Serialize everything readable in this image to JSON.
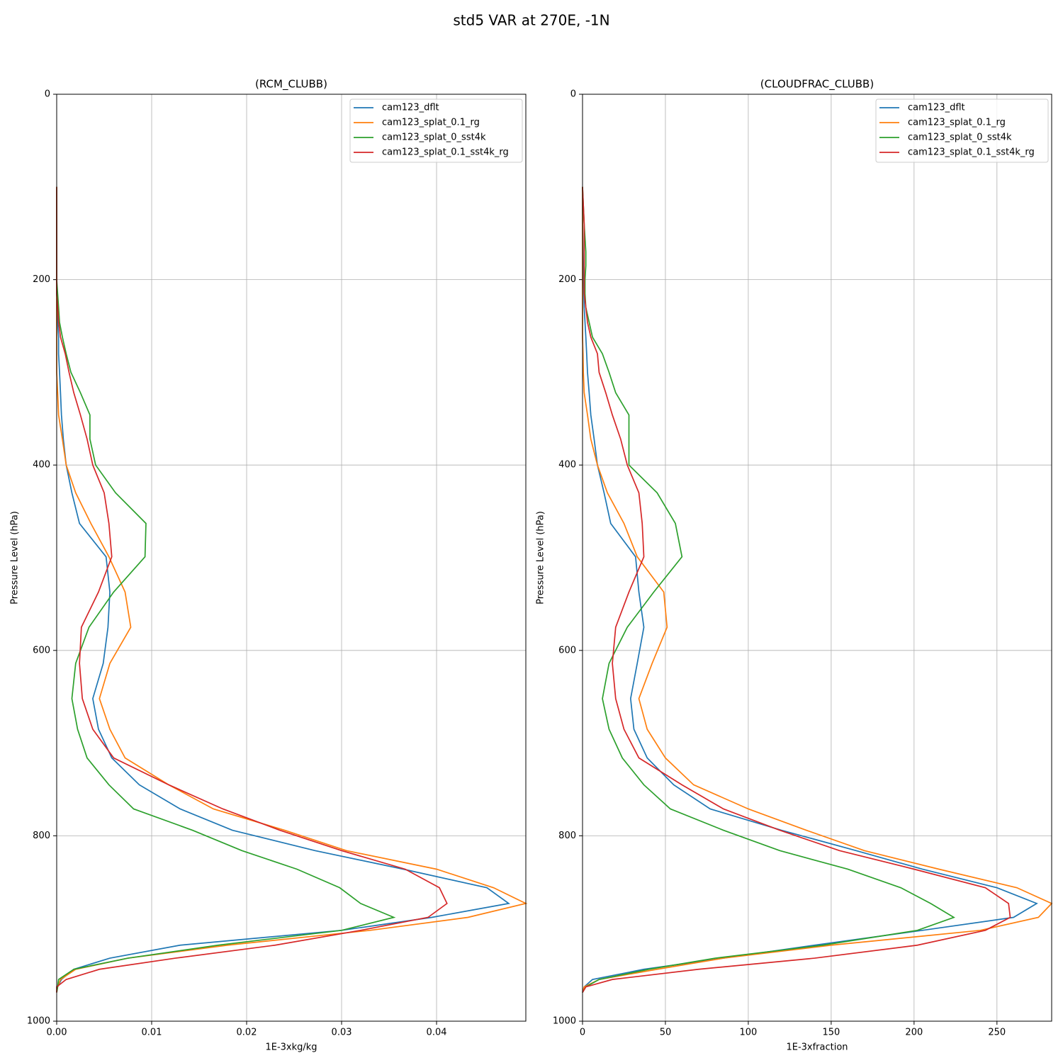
{
  "title": "std5 VAR at 270E, -1N",
  "chart_data": [
    {
      "type": "line",
      "title": "(RCM_CLUBB)",
      "xlabel": "1E-3xkg/kg",
      "ylabel": "Pressure Level (hPa)",
      "y": [
        969,
        963,
        955,
        944,
        932,
        918,
        902,
        888,
        873,
        856,
        836,
        816,
        794,
        771,
        745,
        716,
        685,
        652,
        614,
        575,
        537,
        499,
        463,
        430,
        400,
        372,
        346,
        322,
        300,
        280,
        262,
        246,
        230,
        215,
        200,
        185,
        170,
        155,
        140,
        120,
        100
      ],
      "series": [
        {
          "name": "cam123_dflt",
          "color": "#1f77b4",
          "values": [
            0,
            0.0001,
            0.0005,
            0.0018,
            0.0056,
            0.013,
            0.03,
            0.0395,
            0.0476,
            0.0453,
            0.0365,
            0.0272,
            0.0185,
            0.013,
            0.0087,
            0.0058,
            0.0044,
            0.0038,
            0.0049,
            0.0054,
            0.0056,
            0.0052,
            0.0024,
            0.0016,
            0.001,
            0.0007,
            0.0005,
            0.0004,
            0.0003,
            0.0002,
            0.0002,
            0.0001,
            0.0001,
            0,
            0,
            0,
            0,
            0,
            0,
            0,
            0
          ]
        },
        {
          "name": "cam123_splat_0.1_rg",
          "color": "#ff7f0e",
          "values": [
            0,
            0.0001,
            0.0004,
            0.002,
            0.0075,
            0.018,
            0.033,
            0.0433,
            0.0494,
            0.046,
            0.04,
            0.0305,
            0.024,
            0.0165,
            0.0118,
            0.0072,
            0.0056,
            0.0045,
            0.0056,
            0.0078,
            0.0072,
            0.0055,
            0.0036,
            0.002,
            0.001,
            0.0006,
            0.0002,
            0.0001,
            0,
            0,
            0,
            0,
            0,
            0,
            0,
            0,
            0,
            0,
            0,
            0,
            0
          ]
        },
        {
          "name": "cam123_splat_0_sst4k",
          "color": "#2ca02c",
          "values": [
            0,
            0.0001,
            0.0002,
            0.0018,
            0.0075,
            0.017,
            0.03,
            0.0355,
            0.032,
            0.0298,
            0.0253,
            0.0195,
            0.0143,
            0.0081,
            0.0055,
            0.0032,
            0.0022,
            0.0016,
            0.002,
            0.0034,
            0.006,
            0.0093,
            0.0094,
            0.0062,
            0.0041,
            0.0035,
            0.0035,
            0.0025,
            0.0015,
            0.001,
            0.0006,
            0.0003,
            0.0002,
            0.0001,
            0,
            0,
            0,
            0,
            0,
            0,
            0
          ]
        },
        {
          "name": "cam123_splat_0.1_sst4k_rg",
          "color": "#d62728",
          "values": [
            0,
            0,
            0.001,
            0.0045,
            0.0125,
            0.023,
            0.032,
            0.0391,
            0.0411,
            0.0403,
            0.0367,
            0.03,
            0.0235,
            0.0175,
            0.0118,
            0.006,
            0.0038,
            0.0027,
            0.0024,
            0.0026,
            0.0044,
            0.0058,
            0.0055,
            0.005,
            0.0038,
            0.0032,
            0.0025,
            0.0018,
            0.0013,
            0.0009,
            0.0004,
            0.0002,
            0.0001,
            0,
            0,
            0,
            0,
            0,
            0,
            0,
            0
          ]
        }
      ],
      "xlim": [
        0,
        0.0494
      ],
      "xticks": [
        {
          "value": 0,
          "label": "0.00"
        },
        0.01,
        0.02,
        0.03,
        0.04
      ],
      "ylim": [
        1000,
        0
      ],
      "yticks": [
        0,
        200,
        400,
        600,
        800,
        1000
      ],
      "grid": true,
      "legend": "upper right"
    },
    {
      "type": "line",
      "title": "(CLOUDFRAC_CLUBB)",
      "xlabel": "1E-3xfraction",
      "ylabel": "Pressure Level (hPa)",
      "y": [
        969,
        963,
        955,
        944,
        932,
        918,
        902,
        888,
        873,
        856,
        836,
        816,
        794,
        771,
        745,
        716,
        685,
        652,
        614,
        575,
        537,
        499,
        463,
        430,
        400,
        372,
        346,
        322,
        300,
        280,
        262,
        246,
        230,
        215,
        200,
        185,
        170,
        155,
        140,
        120,
        100
      ],
      "series": [
        {
          "name": "cam123_dflt",
          "color": "#1f77b4",
          "values": [
            0,
            1,
            6,
            37,
            85,
            140,
            205,
            260,
            274,
            250,
            205,
            165,
            120,
            77,
            55,
            39,
            31,
            29,
            33,
            37,
            34,
            32,
            17,
            13,
            9,
            7,
            5,
            4,
            3,
            2.5,
            2,
            1.5,
            1,
            0.8,
            0.5,
            0.3,
            0.2,
            0.1,
            0,
            0,
            0
          ]
        },
        {
          "name": "cam123_splat_0.1_rg",
          "color": "#ff7f0e",
          "values": [
            0,
            1,
            10,
            45,
            85,
            150,
            240,
            275,
            283,
            262,
            215,
            170,
            135,
            100,
            67,
            50,
            39,
            34,
            42,
            51,
            49,
            33,
            25,
            15,
            9,
            5,
            3,
            1,
            0.5,
            0.3,
            0,
            0,
            0,
            0,
            0,
            0,
            0,
            0,
            0,
            0,
            0
          ]
        },
        {
          "name": "cam123_splat_0_sst4k",
          "color": "#2ca02c",
          "values": [
            0,
            2,
            10,
            40,
            80,
            145,
            202,
            224,
            210,
            192,
            160,
            119,
            85,
            53,
            37,
            24,
            16,
            12,
            16,
            27,
            43,
            60,
            56,
            45,
            28,
            28,
            28,
            20,
            16,
            12,
            6,
            4,
            2,
            1.5,
            1.5,
            2,
            2,
            1.5,
            1,
            0.5,
            0
          ]
        },
        {
          "name": "cam123_splat_0.1_sst4k_rg",
          "color": "#d62728",
          "values": [
            0,
            2,
            18,
            70,
            140,
            202,
            243,
            258,
            257,
            243,
            200,
            155,
            119,
            85,
            60,
            34,
            25,
            20,
            18,
            20,
            28,
            37,
            36,
            34,
            27,
            23,
            18,
            14,
            10,
            9,
            5,
            3,
            2,
            1,
            1,
            1,
            1,
            1,
            1,
            0.5,
            0
          ]
        }
      ],
      "xlim": [
        0,
        283
      ],
      "xticks": [
        0,
        50,
        100,
        150,
        200,
        250
      ],
      "ylim": [
        1000,
        0
      ],
      "yticks": [
        0,
        200,
        400,
        600,
        800,
        1000
      ],
      "grid": true,
      "legend": "upper right"
    }
  ]
}
